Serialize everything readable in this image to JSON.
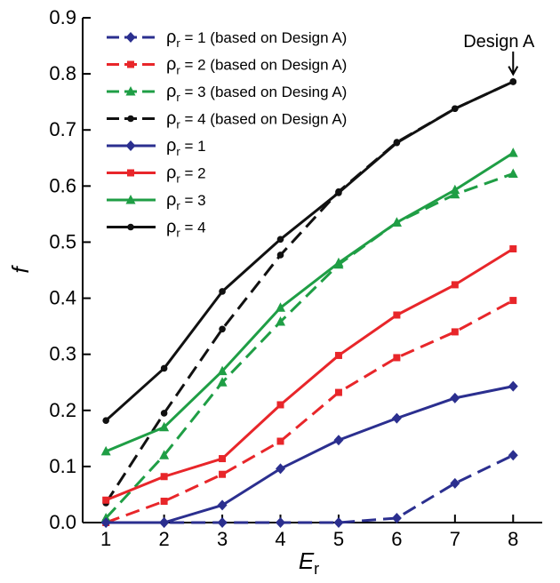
{
  "chart_data": {
    "type": "line",
    "xlabel": "E",
    "xlabel_sub": "r",
    "ylabel": "f",
    "xlim": [
      0.6,
      8.5
    ],
    "ylim": [
      0.0,
      0.9
    ],
    "x_ticks": [
      "1",
      "2",
      "3",
      "4",
      "5",
      "6",
      "7",
      "8"
    ],
    "y_ticks": [
      "0.0",
      "0.1",
      "0.2",
      "0.3",
      "0.4",
      "0.5",
      "0.6",
      "0.7",
      "0.8",
      "0.9"
    ],
    "legend_position": "top-left",
    "annotation": {
      "text": "Design A",
      "x": 8,
      "y": 0.785
    },
    "series": [
      {
        "name": "ρr = 1  (based on Design A)",
        "legend_main": "ρ",
        "legend_sub": "r",
        "legend_rest": " = 1  (based on Design A)",
        "color": "#2b2f8f",
        "dashed": true,
        "marker": "diamond",
        "x": [
          1,
          2,
          3,
          4,
          5,
          6,
          7,
          8
        ],
        "y": [
          0.0,
          0.0,
          0.0,
          0.0,
          0.0,
          0.008,
          0.07,
          0.12
        ]
      },
      {
        "name": "ρr = 2  (based on Design A)",
        "legend_main": "ρ",
        "legend_sub": "r",
        "legend_rest": " = 2  (based on Design A)",
        "color": "#e8262a",
        "dashed": true,
        "marker": "square",
        "x": [
          1,
          2,
          3,
          4,
          5,
          6,
          7,
          8
        ],
        "y": [
          0.0,
          0.038,
          0.086,
          0.145,
          0.232,
          0.294,
          0.34,
          0.396
        ]
      },
      {
        "name": "ρr = 3  (based on Desing A)",
        "legend_main": "ρ",
        "legend_sub": "r",
        "legend_rest": " = 3  (based on Desing A)",
        "color": "#1f9e45",
        "dashed": true,
        "marker": "triangle",
        "x": [
          1,
          2,
          3,
          4,
          5,
          6,
          7,
          8
        ],
        "y": [
          0.008,
          0.12,
          0.25,
          0.358,
          0.46,
          0.535,
          0.585,
          0.622
        ]
      },
      {
        "name": "ρr = 4  (based on Design A)",
        "legend_main": "ρ",
        "legend_sub": "r",
        "legend_rest": " = 4  (based on Design A)",
        "color": "#111111",
        "dashed": true,
        "marker": "circle",
        "x": [
          1,
          2,
          3,
          4,
          5,
          6,
          7,
          8
        ],
        "y": [
          0.035,
          0.195,
          0.345,
          0.477,
          0.59,
          0.678,
          0.738,
          0.786
        ]
      },
      {
        "name": "ρr = 1",
        "legend_main": "ρ",
        "legend_sub": "r",
        "legend_rest": " = 1",
        "color": "#2b2f8f",
        "dashed": false,
        "marker": "diamond",
        "x": [
          1,
          2,
          3,
          4,
          5,
          6,
          7,
          8
        ],
        "y": [
          0.0,
          0.0,
          0.031,
          0.096,
          0.147,
          0.186,
          0.222,
          0.243
        ]
      },
      {
        "name": "ρr = 2",
        "legend_main": "ρ",
        "legend_sub": "r",
        "legend_rest": " = 2",
        "color": "#e8262a",
        "dashed": false,
        "marker": "square",
        "x": [
          1,
          2,
          3,
          4,
          5,
          6,
          7,
          8
        ],
        "y": [
          0.04,
          0.082,
          0.114,
          0.21,
          0.298,
          0.37,
          0.424,
          0.488
        ]
      },
      {
        "name": "ρr = 3",
        "legend_main": "ρ",
        "legend_sub": "r",
        "legend_rest": " = 3",
        "color": "#1f9e45",
        "dashed": false,
        "marker": "triangle",
        "x": [
          1,
          2,
          3,
          4,
          5,
          6,
          7,
          8
        ],
        "y": [
          0.127,
          0.17,
          0.27,
          0.383,
          0.463,
          0.535,
          0.593,
          0.659
        ]
      },
      {
        "name": "ρr = 4",
        "legend_main": "ρ",
        "legend_sub": "r",
        "legend_rest": " = 4",
        "color": "#111111",
        "dashed": false,
        "marker": "circle",
        "x": [
          1,
          2,
          3,
          4,
          5,
          6,
          7,
          8
        ],
        "y": [
          0.182,
          0.275,
          0.412,
          0.505,
          0.588,
          0.677,
          0.738,
          0.786
        ]
      }
    ]
  }
}
